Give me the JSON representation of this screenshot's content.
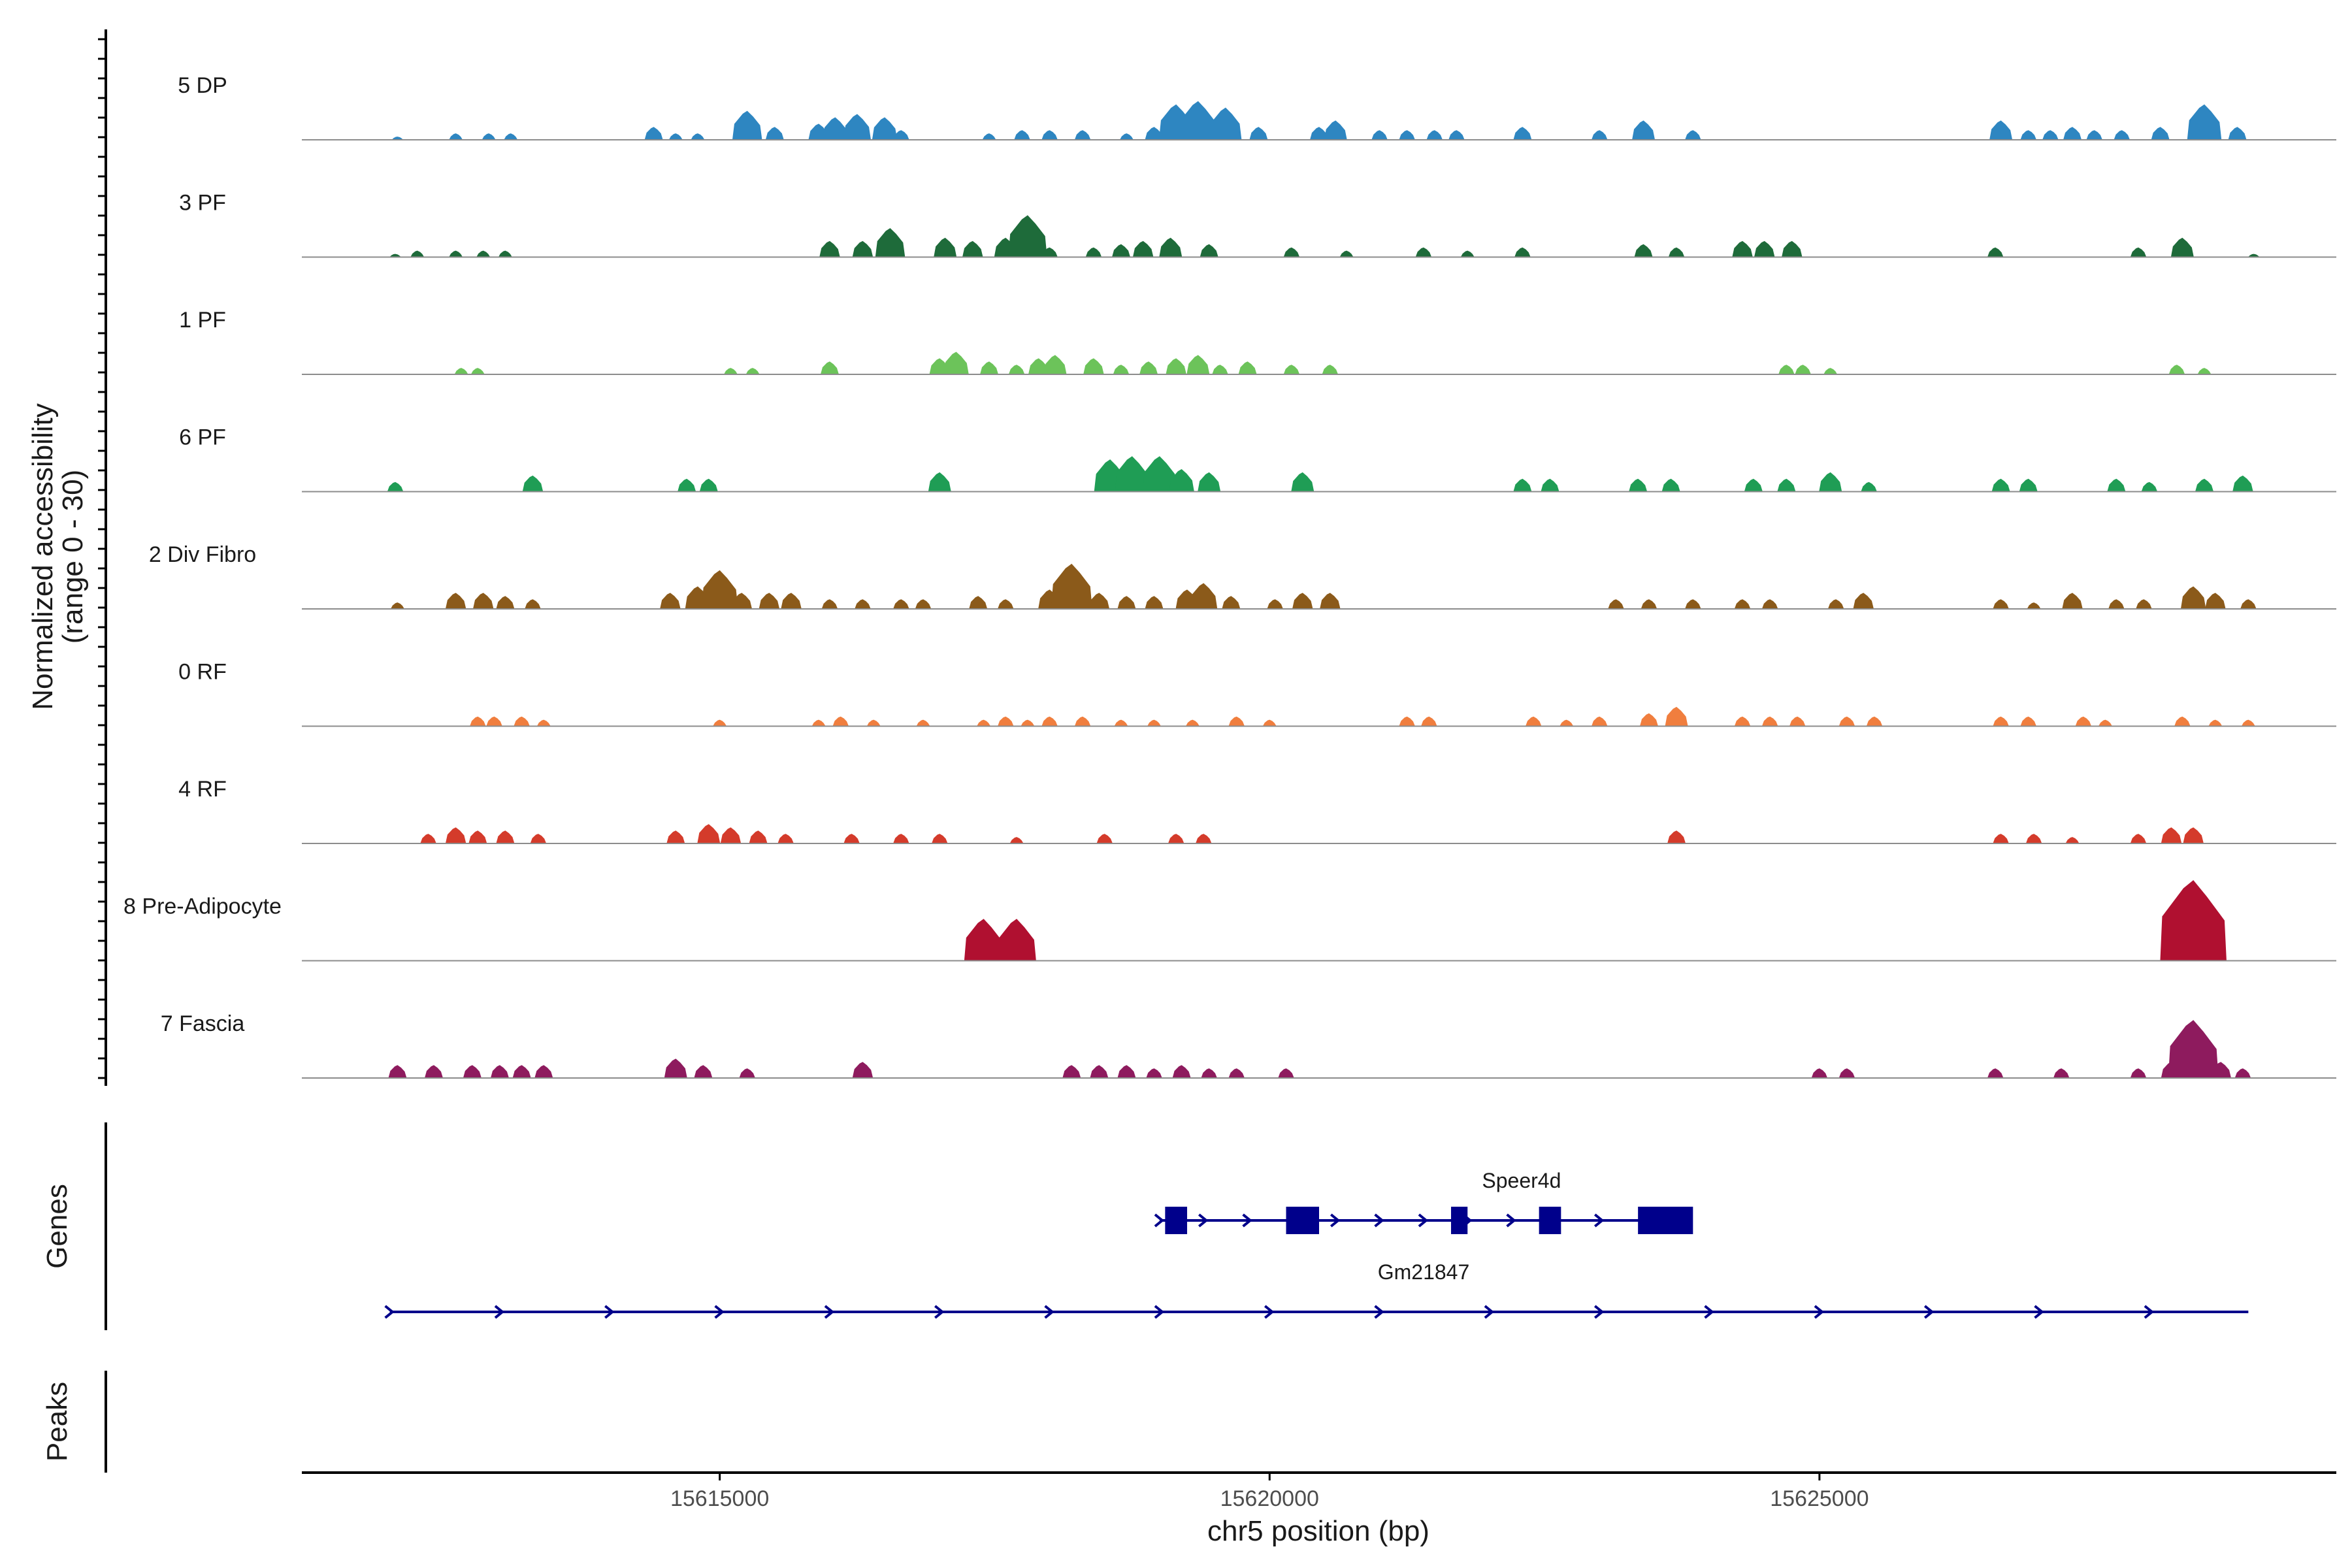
{
  "chart_data": {
    "type": "area",
    "region": {
      "chrom": "chr5",
      "start": 15611200,
      "end": 15629700
    },
    "ylabel_line1": "Normalized accessibility",
    "ylabel_line2": "(range 0 - 30)",
    "xlabel": "chr5 position (bp)",
    "ylim": [
      0,
      30
    ],
    "xticks": [
      {
        "value": 15615000,
        "label": "15615000"
      },
      {
        "value": 15620000,
        "label": "15620000"
      },
      {
        "value": 15625000,
        "label": "15625000"
      }
    ],
    "panel_labels": {
      "genes": "Genes",
      "peaks": "Peaks"
    },
    "series": [
      {
        "name": "5 DP",
        "color": "#2E86C1",
        "peaks": [
          [
            15612070,
            1
          ],
          [
            15612600,
            2
          ],
          [
            15612900,
            2
          ],
          [
            15613100,
            2
          ],
          [
            15614400,
            4
          ],
          [
            15614600,
            2
          ],
          [
            15614800,
            2
          ],
          [
            15615250,
            9
          ],
          [
            15615500,
            4
          ],
          [
            15615900,
            5
          ],
          [
            15616050,
            7
          ],
          [
            15616250,
            8
          ],
          [
            15616500,
            7
          ],
          [
            15616650,
            3
          ],
          [
            15617450,
            2
          ],
          [
            15617750,
            3
          ],
          [
            15618000,
            3
          ],
          [
            15618300,
            3
          ],
          [
            15618700,
            2
          ],
          [
            15618950,
            4
          ],
          [
            15619150,
            11
          ],
          [
            15619350,
            12
          ],
          [
            15619600,
            10
          ],
          [
            15619900,
            4
          ],
          [
            15620450,
            4
          ],
          [
            15620600,
            6
          ],
          [
            15621000,
            3
          ],
          [
            15621250,
            3
          ],
          [
            15621500,
            3
          ],
          [
            15621700,
            3
          ],
          [
            15622300,
            4
          ],
          [
            15623000,
            3
          ],
          [
            15623400,
            6
          ],
          [
            15623850,
            3
          ],
          [
            15626650,
            6
          ],
          [
            15626900,
            3
          ],
          [
            15627100,
            3
          ],
          [
            15627300,
            4
          ],
          [
            15627500,
            3
          ],
          [
            15627750,
            3
          ],
          [
            15628100,
            4
          ],
          [
            15628500,
            11
          ],
          [
            15628800,
            4
          ]
        ]
      },
      {
        "name": "3 PF",
        "color": "#1E6B3A",
        "peaks": [
          [
            15612050,
            1
          ],
          [
            15612250,
            2
          ],
          [
            15612600,
            2
          ],
          [
            15612850,
            2
          ],
          [
            15613050,
            2
          ],
          [
            15616000,
            5
          ],
          [
            15616300,
            5
          ],
          [
            15616550,
            9
          ],
          [
            15617050,
            6
          ],
          [
            15617300,
            5
          ],
          [
            15617600,
            6
          ],
          [
            15617800,
            13
          ],
          [
            15618000,
            3
          ],
          [
            15618400,
            3
          ],
          [
            15618650,
            4
          ],
          [
            15618850,
            5
          ],
          [
            15619100,
            6
          ],
          [
            15619450,
            4
          ],
          [
            15620200,
            3
          ],
          [
            15620700,
            2
          ],
          [
            15621400,
            3
          ],
          [
            15621800,
            2
          ],
          [
            15622300,
            3
          ],
          [
            15623400,
            4
          ],
          [
            15623700,
            3
          ],
          [
            15624300,
            5
          ],
          [
            15624500,
            5
          ],
          [
            15624750,
            5
          ],
          [
            15626600,
            3
          ],
          [
            15627900,
            3
          ],
          [
            15628300,
            6
          ],
          [
            15628950,
            1
          ]
        ]
      },
      {
        "name": "1 PF",
        "color": "#6CC35A",
        "peaks": [
          [
            15612650,
            2
          ],
          [
            15612800,
            2
          ],
          [
            15615100,
            2
          ],
          [
            15615300,
            2
          ],
          [
            15616000,
            4
          ],
          [
            15617000,
            5
          ],
          [
            15617150,
            7
          ],
          [
            15617450,
            4
          ],
          [
            15617700,
            3
          ],
          [
            15617900,
            5
          ],
          [
            15618050,
            6
          ],
          [
            15618400,
            5
          ],
          [
            15618650,
            3
          ],
          [
            15618900,
            4
          ],
          [
            15619150,
            5
          ],
          [
            15619350,
            6
          ],
          [
            15619550,
            3
          ],
          [
            15619800,
            4
          ],
          [
            15620200,
            3
          ],
          [
            15620550,
            3
          ],
          [
            15624700,
            3
          ],
          [
            15624850,
            3
          ],
          [
            15625100,
            2
          ],
          [
            15628250,
            3
          ],
          [
            15628500,
            2
          ]
        ]
      },
      {
        "name": "6 PF",
        "color": "#1F9D55",
        "peaks": [
          [
            15612050,
            3
          ],
          [
            15613300,
            5
          ],
          [
            15614700,
            4
          ],
          [
            15614900,
            4
          ],
          [
            15617000,
            6
          ],
          [
            15618550,
            10
          ],
          [
            15618750,
            11
          ],
          [
            15619000,
            11
          ],
          [
            15619200,
            7
          ],
          [
            15619450,
            6
          ],
          [
            15620300,
            6
          ],
          [
            15622300,
            4
          ],
          [
            15622550,
            4
          ],
          [
            15623350,
            4
          ],
          [
            15623650,
            4
          ],
          [
            15624400,
            4
          ],
          [
            15624700,
            4
          ],
          [
            15625100,
            6
          ],
          [
            15625450,
            3
          ],
          [
            15626650,
            4
          ],
          [
            15626900,
            4
          ],
          [
            15627700,
            4
          ],
          [
            15628000,
            3
          ],
          [
            15628500,
            4
          ],
          [
            15628850,
            5
          ]
        ]
      },
      {
        "name": "2 Div Fibro",
        "color": "#8B5A1A",
        "peaks": [
          [
            15612070,
            2
          ],
          [
            15612600,
            5
          ],
          [
            15612850,
            5
          ],
          [
            15613050,
            4
          ],
          [
            15613300,
            3
          ],
          [
            15614550,
            5
          ],
          [
            15614800,
            7
          ],
          [
            15615000,
            12
          ],
          [
            15615200,
            5
          ],
          [
            15615450,
            5
          ],
          [
            15615650,
            5
          ],
          [
            15616000,
            3
          ],
          [
            15616300,
            3
          ],
          [
            15616650,
            3
          ],
          [
            15616850,
            3
          ],
          [
            15617350,
            4
          ],
          [
            15617600,
            3
          ],
          [
            15618000,
            6
          ],
          [
            15618200,
            14
          ],
          [
            15618450,
            5
          ],
          [
            15618700,
            4
          ],
          [
            15618950,
            4
          ],
          [
            15619250,
            6
          ],
          [
            15619400,
            8
          ],
          [
            15619650,
            4
          ],
          [
            15620050,
            3
          ],
          [
            15620300,
            5
          ],
          [
            15620550,
            5
          ],
          [
            15623150,
            3
          ],
          [
            15623450,
            3
          ],
          [
            15623850,
            3
          ],
          [
            15624300,
            3
          ],
          [
            15624550,
            3
          ],
          [
            15625150,
            3
          ],
          [
            15625400,
            5
          ],
          [
            15626650,
            3
          ],
          [
            15626950,
            2
          ],
          [
            15627300,
            5
          ],
          [
            15627700,
            3
          ],
          [
            15627950,
            3
          ],
          [
            15628400,
            7
          ],
          [
            15628600,
            5
          ],
          [
            15628900,
            3
          ]
        ]
      },
      {
        "name": "0 RF",
        "color": "#F07E3E",
        "peaks": [
          [
            15612800,
            3
          ],
          [
            15612950,
            3
          ],
          [
            15613200,
            3
          ],
          [
            15613400,
            2
          ],
          [
            15615000,
            2
          ],
          [
            15615900,
            2
          ],
          [
            15616100,
            3
          ],
          [
            15616400,
            2
          ],
          [
            15616850,
            2
          ],
          [
            15617400,
            2
          ],
          [
            15617600,
            3
          ],
          [
            15617800,
            2
          ],
          [
            15618000,
            3
          ],
          [
            15618300,
            3
          ],
          [
            15618650,
            2
          ],
          [
            15618950,
            2
          ],
          [
            15619300,
            2
          ],
          [
            15619700,
            3
          ],
          [
            15620000,
            2
          ],
          [
            15621250,
            3
          ],
          [
            15621450,
            3
          ],
          [
            15622400,
            3
          ],
          [
            15622700,
            2
          ],
          [
            15623000,
            3
          ],
          [
            15623450,
            4
          ],
          [
            15623700,
            6
          ],
          [
            15624300,
            3
          ],
          [
            15624550,
            3
          ],
          [
            15624800,
            3
          ],
          [
            15625250,
            3
          ],
          [
            15625500,
            3
          ],
          [
            15626650,
            3
          ],
          [
            15626900,
            3
          ],
          [
            15627400,
            3
          ],
          [
            15627600,
            2
          ],
          [
            15628300,
            3
          ],
          [
            15628600,
            2
          ],
          [
            15628900,
            2
          ]
        ]
      },
      {
        "name": "4 RF",
        "color": "#D43B2B",
        "peaks": [
          [
            15612350,
            3
          ],
          [
            15612600,
            5
          ],
          [
            15612800,
            4
          ],
          [
            15613050,
            4
          ],
          [
            15613350,
            3
          ],
          [
            15614600,
            4
          ],
          [
            15614900,
            6
          ],
          [
            15615100,
            5
          ],
          [
            15615350,
            4
          ],
          [
            15615600,
            3
          ],
          [
            15616200,
            3
          ],
          [
            15616650,
            3
          ],
          [
            15617000,
            3
          ],
          [
            15617700,
            2
          ],
          [
            15618500,
            3
          ],
          [
            15619150,
            3
          ],
          [
            15619400,
            3
          ],
          [
            15623700,
            4
          ],
          [
            15626650,
            3
          ],
          [
            15626950,
            3
          ],
          [
            15627300,
            2
          ],
          [
            15627900,
            3
          ],
          [
            15628200,
            5
          ],
          [
            15628400,
            5
          ]
        ]
      },
      {
        "name": "8 Pre-Adipocyte",
        "color": "#B01030",
        "peaks": [
          [
            15617400,
            13
          ],
          [
            15617700,
            13
          ],
          [
            15628400,
            25
          ]
        ]
      },
      {
        "name": "7 Fascia",
        "color": "#8E1B5E",
        "peaks": [
          [
            15612070,
            4
          ],
          [
            15612400,
            4
          ],
          [
            15612750,
            4
          ],
          [
            15613000,
            4
          ],
          [
            15613200,
            4
          ],
          [
            15613400,
            4
          ],
          [
            15614600,
            6
          ],
          [
            15614850,
            4
          ],
          [
            15615250,
            3
          ],
          [
            15616300,
            5
          ],
          [
            15618200,
            4
          ],
          [
            15618450,
            4
          ],
          [
            15618700,
            4
          ],
          [
            15618950,
            3
          ],
          [
            15619200,
            4
          ],
          [
            15619450,
            3
          ],
          [
            15619700,
            3
          ],
          [
            15620150,
            3
          ],
          [
            15625000,
            3
          ],
          [
            15625250,
            3
          ],
          [
            15626600,
            3
          ],
          [
            15627200,
            3
          ],
          [
            15627900,
            3
          ],
          [
            15628200,
            5
          ],
          [
            15628400,
            18
          ],
          [
            15628650,
            5
          ],
          [
            15628850,
            3
          ]
        ]
      }
    ],
    "genes": [
      {
        "name": "Speer4d",
        "start": 15619000,
        "end": 15623800,
        "strand": "+",
        "exons": [
          [
            15619050,
            15619250
          ],
          [
            15620150,
            15620450
          ],
          [
            15621650,
            15621800
          ],
          [
            15622450,
            15622650
          ],
          [
            15623350,
            15623850
          ]
        ]
      },
      {
        "name": "Gm21847",
        "start": 15612000,
        "end": 15628900,
        "strand": "+",
        "exons": []
      }
    ],
    "peaks_track": []
  }
}
